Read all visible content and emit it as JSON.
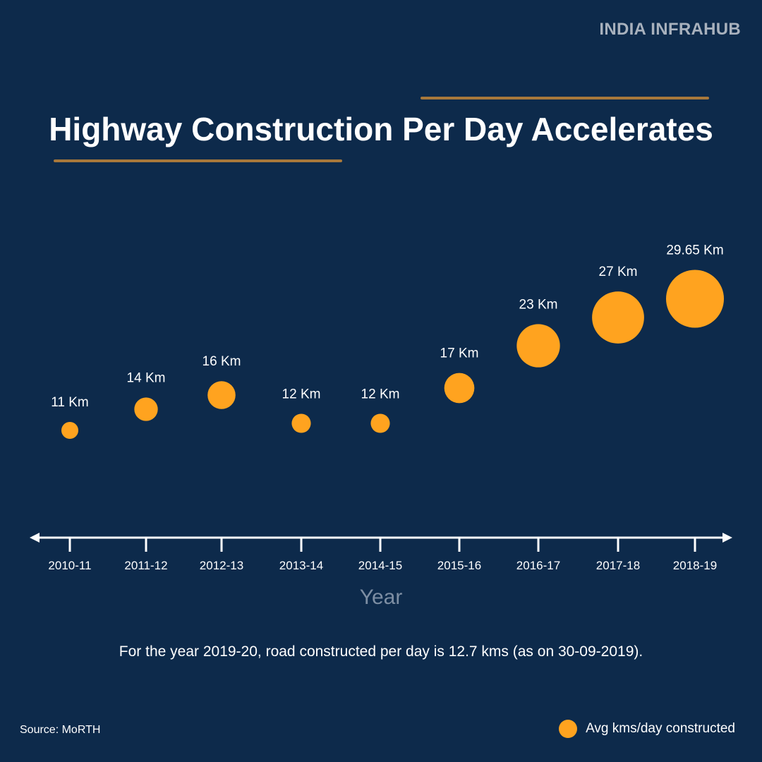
{
  "brand": "INDIA INFRAHUB",
  "title": "Highway Construction Per Day Accelerates",
  "note": "For the year 2019-20, road constructed per day is 12.7 kms (as on 30-09-2019).",
  "source": "Source: MoRTH",
  "colors": {
    "background": "#0d2a4b",
    "bubble": "#ffa31f",
    "accent_line": "#a8783b",
    "axis_title": "#7d8ea3"
  },
  "chart_data": {
    "type": "scatter",
    "title": "Highway Construction Per Day Accelerates",
    "xlabel": "Year",
    "ylabel": "",
    "categories": [
      "2010-11",
      "2011-12",
      "2012-13",
      "2013-14",
      "2014-15",
      "2015-16",
      "2016-17",
      "2017-18",
      "2018-19"
    ],
    "series": [
      {
        "name": "Avg kms/day constructed",
        "values": [
          11,
          14,
          16,
          12,
          12,
          17,
          23,
          27,
          29.65
        ]
      }
    ],
    "data_labels": [
      "11 Km",
      "14 Km",
      "16 Km",
      "12 Km",
      "12 Km",
      "17 Km",
      "23 Km",
      "27 Km",
      "29.65 Km"
    ],
    "ylim": [
      6,
      32
    ],
    "grid": false,
    "legend_position": "bottom-right"
  }
}
